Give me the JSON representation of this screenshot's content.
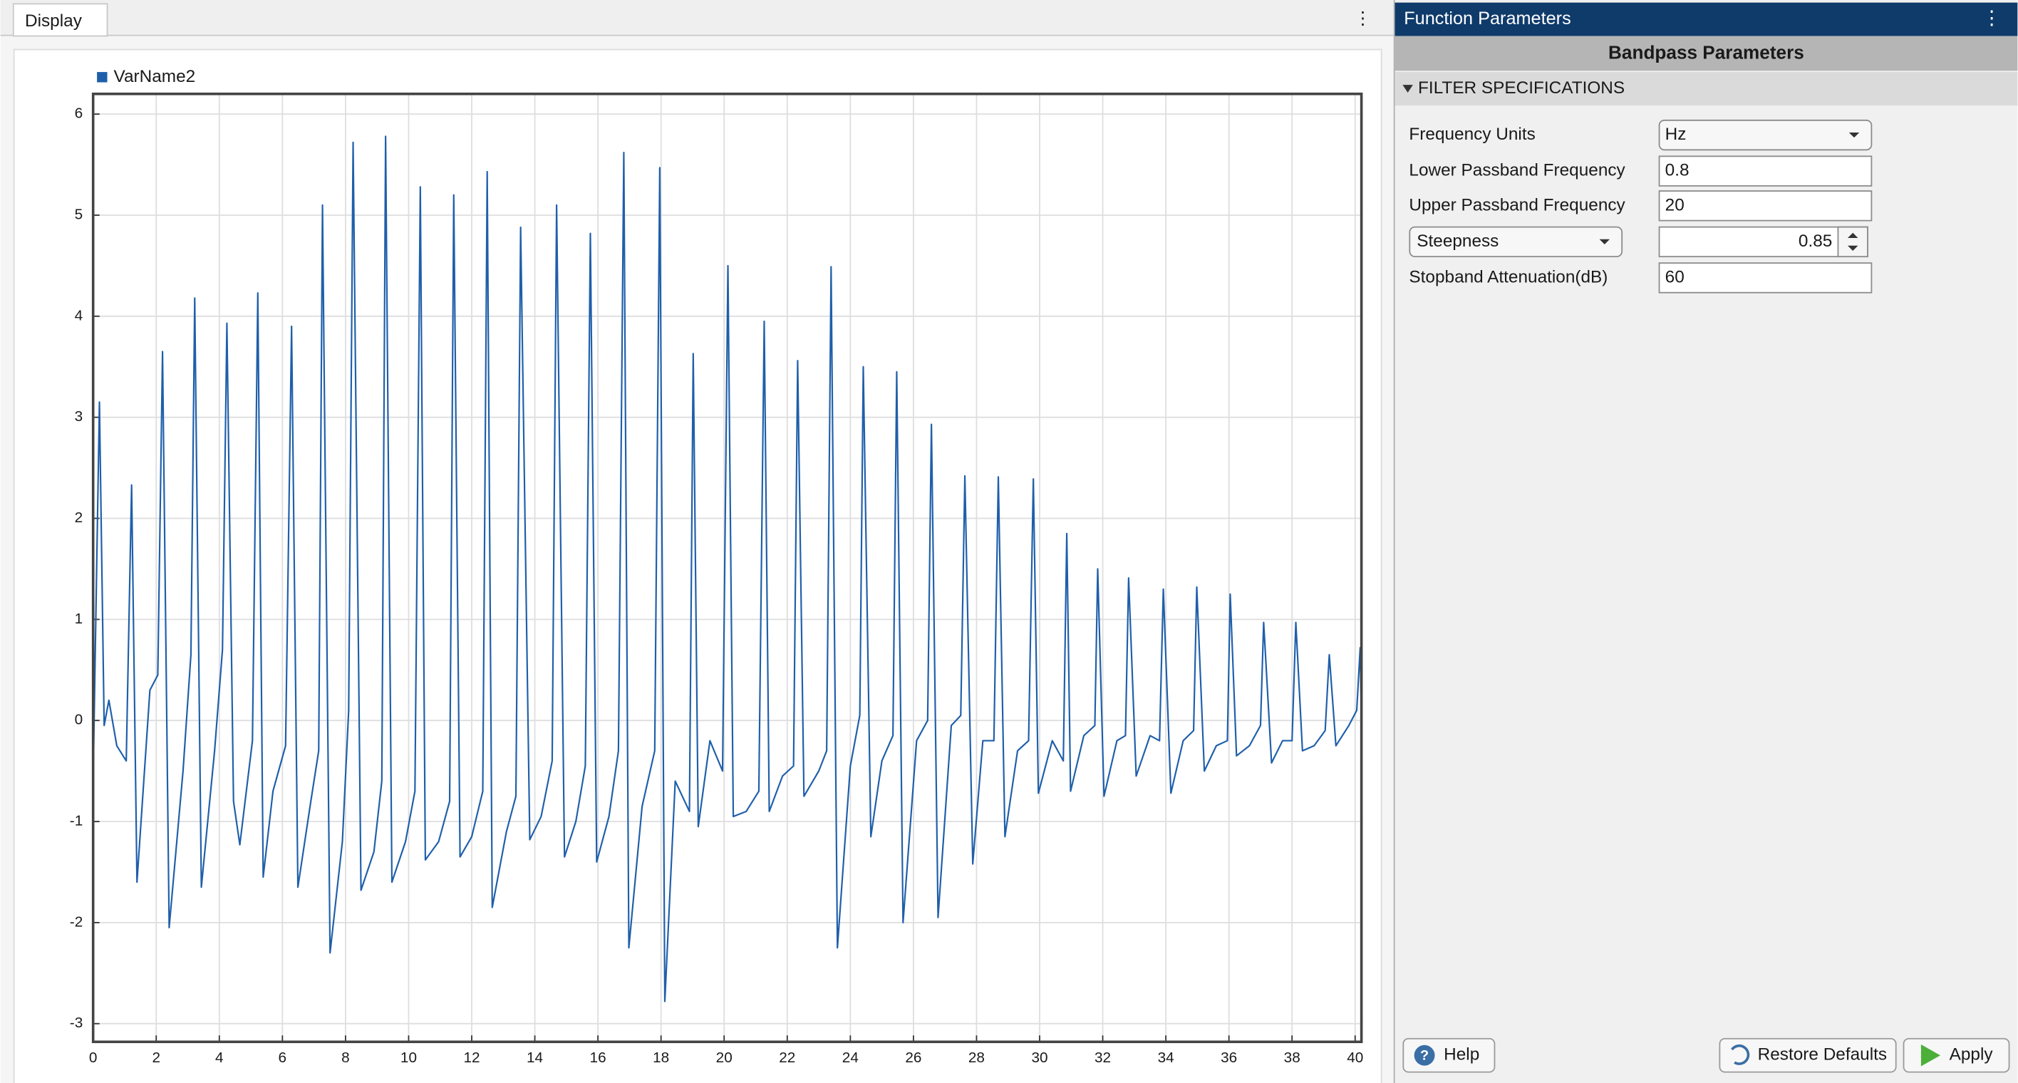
{
  "tabs": {
    "display": "Display"
  },
  "chart_data": {
    "type": "line",
    "x": [
      0,
      0.2,
      0.35,
      0.5,
      0.75,
      1.05,
      1.22,
      1.39,
      1.8,
      2.05,
      2.2,
      2.41,
      2.85,
      3.1,
      3.22,
      3.43,
      3.85,
      4.1,
      4.24,
      4.45,
      4.65,
      5.05,
      5.22,
      5.39,
      5.7,
      6.1,
      6.29,
      6.49,
      6.9,
      7.15,
      7.27,
      7.51,
      7.9,
      8.1,
      8.24,
      8.49,
      8.9,
      9.15,
      9.27,
      9.47,
      9.9,
      10.2,
      10.37,
      10.53,
      10.95,
      11.3,
      11.43,
      11.63,
      12.0,
      12.35,
      12.49,
      12.65,
      13.1,
      13.4,
      13.55,
      13.84,
      14.2,
      14.55,
      14.69,
      14.94,
      15.3,
      15.6,
      15.76,
      15.96,
      16.35,
      16.65,
      16.82,
      16.98,
      17.4,
      17.8,
      17.96,
      18.12,
      18.45,
      18.9,
      19.02,
      19.18,
      19.55,
      19.95,
      20.12,
      20.29,
      20.7,
      21.1,
      21.27,
      21.43,
      21.85,
      22.2,
      22.33,
      22.53,
      23.0,
      23.25,
      23.39,
      23.59,
      24.0,
      24.3,
      24.41,
      24.65,
      25.0,
      25.35,
      25.47,
      25.67,
      26.1,
      26.45,
      26.57,
      26.78,
      27.2,
      27.5,
      27.63,
      27.88,
      28.2,
      28.55,
      28.69,
      28.9,
      29.3,
      29.65,
      29.8,
      29.96,
      30.4,
      30.75,
      30.86,
      30.98,
      31.4,
      31.75,
      31.84,
      32.04,
      32.45,
      32.72,
      32.82,
      33.06,
      33.5,
      33.8,
      33.92,
      34.16,
      34.55,
      34.88,
      34.98,
      35.22,
      35.6,
      35.95,
      36.04,
      36.24,
      36.65,
      37.0,
      37.1,
      37.35,
      37.7,
      38.0,
      38.12,
      38.33,
      38.7,
      39.05,
      39.18,
      39.39,
      39.8,
      40.05,
      40.16,
      40.2
    ],
    "series": [
      {
        "name": "VarName2",
        "color": "#1f5faa",
        "values": [
          -0.6,
          3.15,
          -0.05,
          0.2,
          -0.25,
          -0.4,
          2.33,
          -1.6,
          0.3,
          0.45,
          3.65,
          -2.05,
          -0.5,
          0.65,
          4.18,
          -1.65,
          -0.3,
          0.7,
          3.93,
          -0.8,
          -1.23,
          -0.2,
          4.23,
          -1.55,
          -0.7,
          -0.25,
          3.9,
          -1.65,
          -0.8,
          -0.3,
          5.1,
          -2.3,
          -1.2,
          0.1,
          5.72,
          -1.68,
          -1.3,
          -0.6,
          5.78,
          -1.6,
          -1.2,
          -0.7,
          5.28,
          -1.38,
          -1.2,
          -0.8,
          5.2,
          -1.35,
          -1.15,
          -0.7,
          5.43,
          -1.85,
          -1.1,
          -0.75,
          4.88,
          -1.18,
          -0.95,
          -0.4,
          5.1,
          -1.35,
          -1.0,
          -0.45,
          4.82,
          -1.4,
          -0.95,
          -0.3,
          5.62,
          -2.25,
          -0.85,
          -0.3,
          5.47,
          -2.78,
          -0.6,
          -0.9,
          3.63,
          -1.05,
          -0.2,
          -0.5,
          4.5,
          -0.95,
          -0.9,
          -0.7,
          3.95,
          -0.9,
          -0.55,
          -0.45,
          3.56,
          -0.75,
          -0.5,
          -0.3,
          4.49,
          -2.25,
          -0.45,
          0.05,
          3.5,
          -1.15,
          -0.4,
          -0.15,
          3.45,
          -2.0,
          -0.2,
          0.0,
          2.93,
          -1.95,
          -0.05,
          0.05,
          2.42,
          -1.42,
          -0.2,
          -0.2,
          2.41,
          -1.15,
          -0.3,
          -0.2,
          2.39,
          -0.72,
          -0.2,
          -0.4,
          1.85,
          -0.7,
          -0.15,
          -0.05,
          1.5,
          -0.75,
          -0.2,
          -0.15,
          1.41,
          -0.55,
          -0.15,
          -0.2,
          1.3,
          -0.72,
          -0.2,
          -0.1,
          1.32,
          -0.5,
          -0.25,
          -0.2,
          1.25,
          -0.35,
          -0.25,
          -0.05,
          0.97,
          -0.42,
          -0.2,
          -0.2,
          0.97,
          -0.3,
          -0.25,
          -0.1,
          0.65,
          -0.25,
          -0.05,
          0.1,
          0.72,
          0.0
        ]
      }
    ],
    "xlim": [
      0,
      40.2
    ],
    "ylim": [
      -3.18,
      6.2
    ],
    "xticks": [
      0,
      2,
      4,
      6,
      8,
      10,
      12,
      14,
      16,
      18,
      20,
      22,
      24,
      26,
      28,
      30,
      32,
      34,
      36,
      38,
      40
    ],
    "yticks": [
      -3,
      -2,
      -1,
      0,
      1,
      2,
      3,
      4,
      5,
      6
    ],
    "grid": true
  },
  "panel": {
    "title": "Function Parameters",
    "heading": "Bandpass Parameters",
    "section": "FILTER SPECIFICATIONS",
    "fields": [
      {
        "label": "Frequency Units",
        "value": "Hz"
      },
      {
        "label": "Lower Passband Frequency",
        "value": "0.8"
      },
      {
        "label": "Upper Passband Frequency",
        "value": "20"
      },
      {
        "label": "Steepness",
        "value": "0.85"
      },
      {
        "label": "Stopband Attenuation(dB)",
        "value": "60"
      }
    ],
    "buttons": {
      "help": "Help",
      "restore": "Restore Defaults",
      "apply": "Apply"
    }
  }
}
